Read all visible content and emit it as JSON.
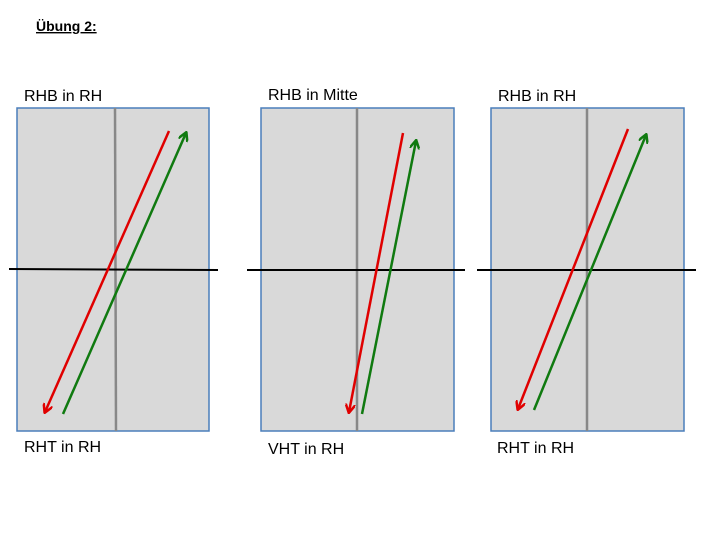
{
  "header": {
    "title": "Übung 2:"
  },
  "panels": [
    {
      "top_label": "RHB in RH",
      "bottom_label": "RHT in RH"
    },
    {
      "top_label": "RHB in Mitte",
      "bottom_label": "VHT in RH"
    },
    {
      "top_label": "RHB in RH",
      "bottom_label": "RHT in RH"
    }
  ]
}
